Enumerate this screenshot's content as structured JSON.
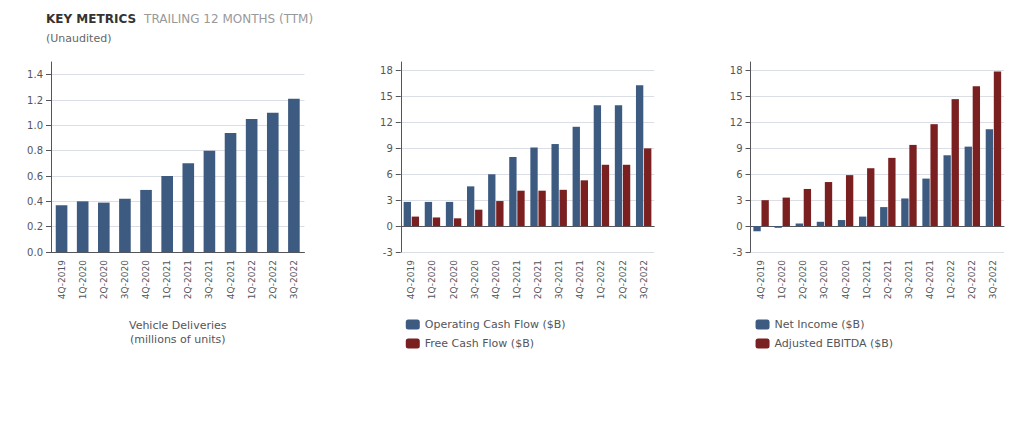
{
  "title": "KEY METRICS",
  "annotations": [
    "TRAILING 12 MONTHS (TTM)"
  ],
  "subtitle": "(Unaudited)",
  "chart_data": [
    {
      "type": "bar",
      "categories": [
        "4Q-2019",
        "1Q-2020",
        "2Q-2020",
        "3Q-2020",
        "4Q-2020",
        "1Q-2021",
        "2Q-2021",
        "3Q-2021",
        "4Q-2021",
        "1Q-2022",
        "2Q-2022",
        "3Q-2022"
      ],
      "values": [
        0.37,
        0.4,
        0.39,
        0.42,
        0.49,
        0.6,
        0.7,
        0.8,
        0.94,
        1.05,
        1.1,
        1.21
      ],
      "color": "#3d5a80",
      "xlabel": "Vehicle Deliveries\n(millions of units)",
      "ylim": [
        0,
        1.5
      ],
      "yticks": [
        {
          "value": 0,
          "label": "0.0"
        },
        0.2,
        0.4,
        0.6,
        0.8,
        {
          "value": 1,
          "label": "1.0"
        },
        1.2,
        1.4
      ],
      "grid": true
    },
    {
      "type": "bar",
      "categories": [
        "4Q-2019",
        "1Q-2020",
        "2Q-2020",
        "3Q-2020",
        "4Q-2020",
        "1Q-2021",
        "2Q-2021",
        "3Q-2021",
        "4Q-2021",
        "1Q-2022",
        "2Q-2022",
        "3Q-2022"
      ],
      "series": [
        {
          "name": "Operating Cash Flow ($B)",
          "color": "#3d5a80",
          "values": [
            2.8,
            2.8,
            2.8,
            4.6,
            6.0,
            8.0,
            9.1,
            9.5,
            11.5,
            14.0,
            14.0,
            16.3
          ]
        },
        {
          "name": "Free Cash Flow ($B)",
          "color": "#7b2020",
          "values": [
            1.1,
            1.0,
            0.9,
            1.9,
            2.9,
            4.1,
            4.1,
            4.2,
            5.3,
            7.1,
            7.1,
            9.0
          ]
        }
      ],
      "ylim": [
        -3,
        19
      ],
      "yticks": [
        -3,
        0,
        3,
        6,
        9,
        12,
        15,
        18
      ],
      "grid": true,
      "legend": "lower left"
    },
    {
      "type": "bar",
      "categories": [
        "4Q-2019",
        "1Q-2020",
        "2Q-2020",
        "3Q-2020",
        "4Q-2020",
        "1Q-2021",
        "2Q-2021",
        "3Q-2021",
        "4Q-2021",
        "1Q-2022",
        "2Q-2022",
        "3Q-2022"
      ],
      "series": [
        {
          "name": "Net Income ($B)",
          "color": "#3d5a80",
          "values": [
            -0.6,
            -0.2,
            0.3,
            0.5,
            0.7,
            1.1,
            2.2,
            3.2,
            5.5,
            8.2,
            9.2,
            11.2
          ]
        },
        {
          "name": "Adjusted EBITDA ($B)",
          "color": "#7b2020",
          "values": [
            3.0,
            3.3,
            4.3,
            5.1,
            5.9,
            6.7,
            7.9,
            9.4,
            11.8,
            14.7,
            16.2,
            17.9
          ]
        }
      ],
      "ylim": [
        -3,
        19
      ],
      "yticks": [
        -3,
        0,
        3,
        6,
        9,
        12,
        15,
        18
      ],
      "grid": true,
      "legend": "lower left"
    }
  ]
}
